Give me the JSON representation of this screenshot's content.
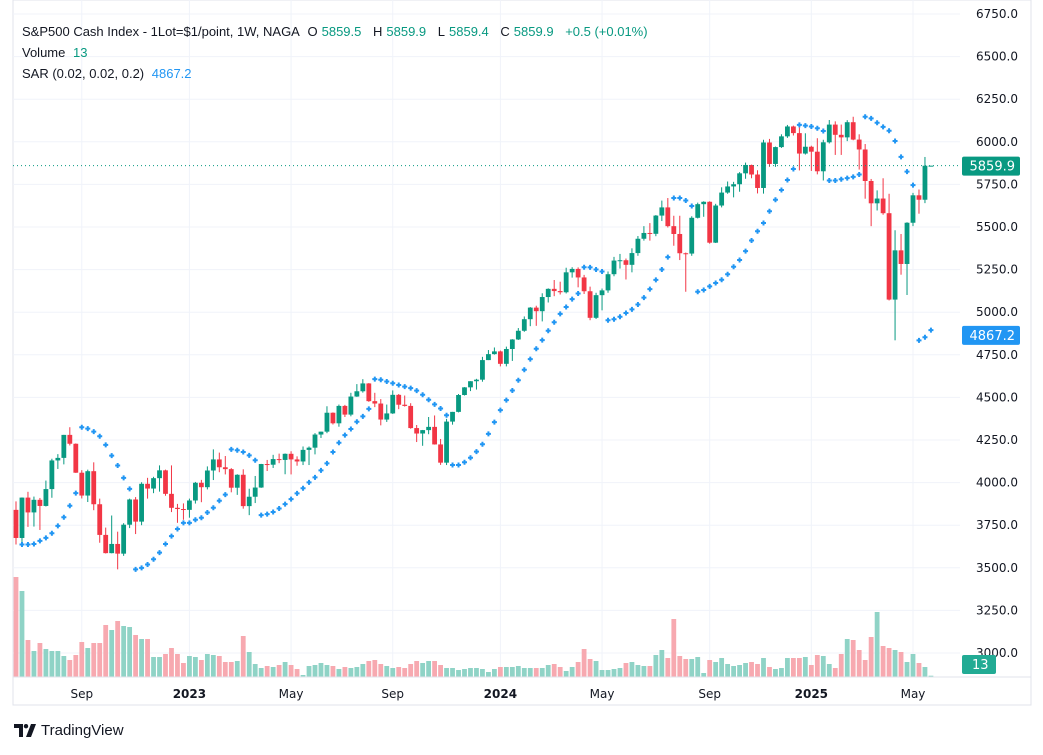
{
  "legend": {
    "symbol": "S&P500 Cash Index - 1Lot=$1/point, 1W, NAGA",
    "open_label": "O",
    "open": "5859.5",
    "high_label": "H",
    "high": "5859.9",
    "low_label": "L",
    "low": "5859.4",
    "close_label": "C",
    "close": "5859.9",
    "change": "+0.5 (+0.01%)",
    "volume_label": "Volume",
    "volume": "13",
    "sar_label": "SAR (0.02, 0.02, 0.2)",
    "sar": "4867.2"
  },
  "price_badges": {
    "last": "5859.9",
    "sar": "4867.2",
    "volume": "13"
  },
  "brand": {
    "name": "TradingView"
  },
  "colors": {
    "up": "#089981",
    "down": "#f23645",
    "sar": "#2196f3",
    "up_volume": "#8fd3c6",
    "down_volume": "#f7a9b0",
    "grid": "#f0f3fa",
    "text": "#131722"
  },
  "chart_data": {
    "type": "candlestick",
    "interval": "1W",
    "sar_params": [
      0.02,
      0.02,
      0.2
    ],
    "ylim": [
      2950,
      6760
    ],
    "y_ticks": [
      "3000.0",
      "3250.0",
      "3500.0",
      "3750.0",
      "4000.0",
      "4250.0",
      "4500.0",
      "4750.0",
      "5000.0",
      "5250.0",
      "5500.0",
      "5750.0",
      "6000.0",
      "6250.0",
      "6500.0",
      "6750.0"
    ],
    "x_ticks": [
      {
        "label": "Sep",
        "index": 11,
        "bold": false
      },
      {
        "label": "2023",
        "index": 29,
        "bold": true
      },
      {
        "label": "May",
        "index": 46,
        "bold": false
      },
      {
        "label": "Sep",
        "index": 63,
        "bold": false
      },
      {
        "label": "2024",
        "index": 81,
        "bold": true
      },
      {
        "label": "May",
        "index": 98,
        "bold": false
      },
      {
        "label": "Sep",
        "index": 116,
        "bold": false
      },
      {
        "label": "2025",
        "index": 133,
        "bold": true
      },
      {
        "label": "May",
        "index": 150,
        "bold": false
      }
    ],
    "ohlc_columns": [
      "open",
      "high",
      "low",
      "close"
    ],
    "ohlc": [
      [
        3840,
        3890,
        3637,
        3675
      ],
      [
        3675,
        3913,
        3640,
        3912
      ],
      [
        3912,
        3946,
        3740,
        3825
      ],
      [
        3825,
        3918,
        3742,
        3899
      ],
      [
        3899,
        3910,
        3722,
        3863
      ],
      [
        3863,
        4012,
        3860,
        3962
      ],
      [
        3962,
        4140,
        3911,
        4130
      ],
      [
        4130,
        4167,
        4080,
        4145
      ],
      [
        4145,
        4280,
        4107,
        4280
      ],
      [
        4280,
        4325,
        4218,
        4228
      ],
      [
        4228,
        4230,
        4057,
        4058
      ],
      [
        4058,
        4073,
        3907,
        3924
      ],
      [
        3924,
        4076,
        3886,
        4067
      ],
      [
        4067,
        4119,
        3838,
        3873
      ],
      [
        3873,
        3906,
        3647,
        3693
      ],
      [
        3693,
        3736,
        3584,
        3586
      ],
      [
        3586,
        3807,
        3585,
        3640
      ],
      [
        3640,
        3712,
        3491,
        3583
      ],
      [
        3583,
        3762,
        3570,
        3753
      ],
      [
        3753,
        3906,
        3733,
        3901
      ],
      [
        3901,
        3915,
        3698,
        3771
      ],
      [
        3771,
        4002,
        3750,
        3993
      ],
      [
        3993,
        4028,
        3906,
        3965
      ],
      [
        3965,
        4034,
        3938,
        4026
      ],
      [
        4026,
        4101,
        3947,
        4072
      ],
      [
        4072,
        4076,
        3923,
        3934
      ],
      [
        3934,
        4101,
        3827,
        3852
      ],
      [
        3852,
        3875,
        3764,
        3845
      ],
      [
        3845,
        3878,
        3782,
        3840
      ],
      [
        3840,
        3906,
        3794,
        3895
      ],
      [
        3895,
        4004,
        3877,
        3999
      ],
      [
        3999,
        4016,
        3885,
        3973
      ],
      [
        3973,
        4095,
        3960,
        4071
      ],
      [
        4071,
        4195,
        4015,
        4136
      ],
      [
        4136,
        4176,
        4061,
        4090
      ],
      [
        4090,
        4156,
        4048,
        4079
      ],
      [
        4079,
        4085,
        3943,
        3970
      ],
      [
        3970,
        4049,
        3928,
        4046
      ],
      [
        4046,
        4078,
        3847,
        3862
      ],
      [
        3862,
        3964,
        3809,
        3917
      ],
      [
        3917,
        4039,
        3880,
        3971
      ],
      [
        3971,
        4110,
        3969,
        4109
      ],
      [
        4109,
        4133,
        4068,
        4105
      ],
      [
        4105,
        4163,
        4086,
        4138
      ],
      [
        4138,
        4170,
        4114,
        4133
      ],
      [
        4133,
        4171,
        4049,
        4169
      ],
      [
        4169,
        4184,
        4048,
        4136
      ],
      [
        4136,
        4154,
        4099,
        4124
      ],
      [
        4124,
        4212,
        4103,
        4192
      ],
      [
        4192,
        4212,
        4103,
        4205
      ],
      [
        4205,
        4290,
        4166,
        4282
      ],
      [
        4282,
        4299,
        4262,
        4299
      ],
      [
        4299,
        4448,
        4290,
        4410
      ],
      [
        4410,
        4412,
        4341,
        4348
      ],
      [
        4348,
        4458,
        4328,
        4450
      ],
      [
        4450,
        4456,
        4385,
        4399
      ],
      [
        4399,
        4527,
        4389,
        4505
      ],
      [
        4505,
        4578,
        4503,
        4536
      ],
      [
        4536,
        4607,
        4528,
        4582
      ],
      [
        4582,
        4584,
        4474,
        4478
      ],
      [
        4478,
        4527,
        4443,
        4464
      ],
      [
        4464,
        4490,
        4336,
        4370
      ],
      [
        4370,
        4458,
        4356,
        4406
      ],
      [
        4406,
        4541,
        4403,
        4515
      ],
      [
        4515,
        4520,
        4431,
        4457
      ],
      [
        4457,
        4511,
        4446,
        4450
      ],
      [
        4450,
        4466,
        4316,
        4320
      ],
      [
        4320,
        4338,
        4238,
        4288
      ],
      [
        4288,
        4309,
        4216,
        4308
      ],
      [
        4308,
        4385,
        4284,
        4327
      ],
      [
        4327,
        4394,
        4223,
        4224
      ],
      [
        4224,
        4256,
        4104,
        4117
      ],
      [
        4117,
        4374,
        4103,
        4358
      ],
      [
        4358,
        4415,
        4340,
        4415
      ],
      [
        4415,
        4520,
        4412,
        4514
      ],
      [
        4514,
        4560,
        4511,
        4559
      ],
      [
        4559,
        4595,
        4537,
        4595
      ],
      [
        4595,
        4609,
        4546,
        4604
      ],
      [
        4604,
        4738,
        4592,
        4719
      ],
      [
        4719,
        4778,
        4719,
        4754
      ],
      [
        4754,
        4793,
        4751,
        4770
      ],
      [
        4770,
        4775,
        4682,
        4697
      ],
      [
        4697,
        4798,
        4682,
        4784
      ],
      [
        4784,
        4842,
        4714,
        4840
      ],
      [
        4840,
        4907,
        4837,
        4891
      ],
      [
        4891,
        4975,
        4885,
        4959
      ],
      [
        4959,
        5030,
        4918,
        5027
      ],
      [
        5027,
        5038,
        4920,
        5006
      ],
      [
        5006,
        5111,
        4946,
        5089
      ],
      [
        5089,
        5140,
        5057,
        5137
      ],
      [
        5137,
        5189,
        5094,
        5124
      ],
      [
        5124,
        5179,
        5104,
        5117
      ],
      [
        5117,
        5261,
        5110,
        5234
      ],
      [
        5234,
        5264,
        5203,
        5254
      ],
      [
        5254,
        5263,
        5146,
        5204
      ],
      [
        5204,
        5219,
        5107,
        5123
      ],
      [
        5123,
        5150,
        4953,
        4967
      ],
      [
        4967,
        5114,
        4960,
        5100
      ],
      [
        5100,
        5139,
        5011,
        5128
      ],
      [
        5128,
        5239,
        5114,
        5223
      ],
      [
        5223,
        5325,
        5211,
        5303
      ],
      [
        5303,
        5342,
        5256,
        5305
      ],
      [
        5305,
        5315,
        5192,
        5278
      ],
      [
        5278,
        5375,
        5234,
        5347
      ],
      [
        5347,
        5447,
        5331,
        5431
      ],
      [
        5431,
        5505,
        5420,
        5465
      ],
      [
        5465,
        5523,
        5420,
        5460
      ],
      [
        5460,
        5570,
        5446,
        5567
      ],
      [
        5567,
        5655,
        5535,
        5615
      ],
      [
        5615,
        5670,
        5497,
        5505
      ],
      [
        5505,
        5566,
        5390,
        5459
      ],
      [
        5459,
        5566,
        5306,
        5346
      ],
      [
        5346,
        5350,
        5120,
        5344
      ],
      [
        5344,
        5563,
        5331,
        5554
      ],
      [
        5554,
        5643,
        5550,
        5634
      ],
      [
        5634,
        5651,
        5560,
        5648
      ],
      [
        5648,
        5651,
        5402,
        5408
      ],
      [
        5408,
        5636,
        5406,
        5626
      ],
      [
        5626,
        5733,
        5615,
        5702
      ],
      [
        5702,
        5767,
        5695,
        5738
      ],
      [
        5738,
        5765,
        5674,
        5751
      ],
      [
        5751,
        5822,
        5707,
        5815
      ],
      [
        5815,
        5878,
        5783,
        5864
      ],
      [
        5864,
        5866,
        5786,
        5808
      ],
      [
        5808,
        5833,
        5697,
        5729
      ],
      [
        5729,
        6012,
        5696,
        5996
      ],
      [
        5996,
        6017,
        5853,
        5870
      ],
      [
        5870,
        5972,
        5853,
        5969
      ],
      [
        5969,
        6044,
        5964,
        6032
      ],
      [
        6032,
        6099,
        6023,
        6090
      ],
      [
        6090,
        6095,
        6037,
        6051
      ],
      [
        6051,
        6085,
        5832,
        5931
      ],
      [
        5931,
        6050,
        5925,
        5971
      ],
      [
        5971,
        5977,
        5829,
        5942
      ],
      [
        5942,
        6021,
        5809,
        5827
      ],
      [
        5827,
        6012,
        5773,
        5997
      ],
      [
        5997,
        6128,
        5990,
        6101
      ],
      [
        6101,
        6120,
        5923,
        6041
      ],
      [
        6041,
        6101,
        5923,
        6026
      ],
      [
        6026,
        6127,
        6004,
        6115
      ],
      [
        6115,
        6147,
        6009,
        6013
      ],
      [
        6013,
        6044,
        5837,
        5955
      ],
      [
        5955,
        5987,
        5666,
        5770
      ],
      [
        5770,
        5782,
        5505,
        5639
      ],
      [
        5639,
        5715,
        5597,
        5667
      ],
      [
        5667,
        5786,
        5572,
        5581
      ],
      [
        5581,
        5695,
        5069,
        5074
      ],
      [
        5074,
        5481,
        4835,
        5363
      ],
      [
        5363,
        5459,
        5220,
        5283
      ],
      [
        5283,
        5528,
        5101,
        5525
      ],
      [
        5525,
        5700,
        5505,
        5686
      ],
      [
        5686,
        5720,
        5578,
        5660
      ],
      [
        5660,
        5911,
        5640,
        5859.5
      ],
      [
        5859.5,
        5859.9,
        5859.4,
        5859.9
      ]
    ],
    "volume": [
      1000,
      860,
      370,
      260,
      340,
      280,
      260,
      260,
      210,
      170,
      220,
      350,
      290,
      340,
      340,
      520,
      470,
      560,
      510,
      500,
      420,
      380,
      380,
      200,
      200,
      230,
      290,
      230,
      140,
      210,
      200,
      170,
      230,
      220,
      210,
      150,
      150,
      160,
      410,
      250,
      130,
      90,
      110,
      100,
      120,
      150,
      120,
      80,
      20,
      110,
      120,
      140,
      120,
      110,
      80,
      100,
      90,
      100,
      130,
      160,
      170,
      130,
      110,
      90,
      100,
      90,
      130,
      160,
      140,
      160,
      160,
      120,
      90,
      90,
      70,
      80,
      90,
      90,
      80,
      50,
      80,
      100,
      100,
      100,
      110,
      90,
      90,
      90,
      90,
      120,
      130,
      100,
      60,
      100,
      150,
      280,
      180,
      160,
      70,
      70,
      80,
      90,
      140,
      150,
      120,
      110,
      110,
      220,
      270,
      190,
      580,
      210,
      180,
      180,
      200,
      40,
      170,
      150,
      190,
      130,
      110,
      120,
      140,
      150,
      130,
      190,
      100,
      80,
      90,
      190,
      190,
      190,
      200,
      120,
      220,
      210,
      130,
      90,
      230,
      380,
      370,
      270,
      170,
      400,
      650,
      310,
      290,
      270,
      250,
      150,
      230,
      140,
      100,
      13
    ]
  }
}
